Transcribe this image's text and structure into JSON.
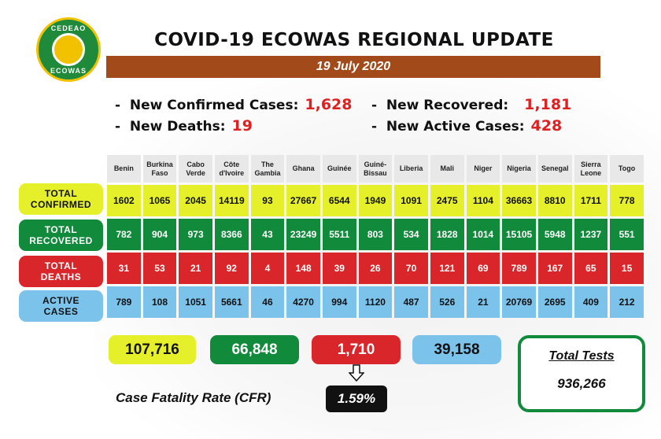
{
  "logo": {
    "top_text": "CEDEAO",
    "bottom_text": "ECOWAS"
  },
  "title": "COVID-19 ECOWAS REGIONAL UPDATE",
  "date": "19 July 2020",
  "stats": {
    "new_confirmed": {
      "label": "New Confirmed Cases:",
      "value": "1,628"
    },
    "new_deaths": {
      "label": "New Deaths:",
      "value": "19"
    },
    "new_recovered": {
      "label": "New Recovered:",
      "value": "1,181"
    },
    "new_active": {
      "label": "New Active Cases:",
      "value": "428"
    }
  },
  "bullet": "-",
  "countries": [
    "Benin",
    "Burkina Faso",
    "Cabo Verde",
    "Côte d'Ivoire",
    "The Gambia",
    "Ghana",
    "Guinée",
    "Guiné-Bissau",
    "Liberia",
    "Mali",
    "Niger",
    "Nigeria",
    "Senegal",
    "Sierra Leone",
    "Togo"
  ],
  "rows": {
    "confirmed": {
      "label": "TOTAL\nCONFIRMED",
      "values": [
        "1602",
        "1065",
        "2045",
        "14119",
        "93",
        "27667",
        "6544",
        "1949",
        "1091",
        "2475",
        "1104",
        "36663",
        "8810",
        "1711",
        "778"
      ]
    },
    "recovered": {
      "label": "TOTAL\nRECOVERED",
      "values": [
        "782",
        "904",
        "973",
        "8366",
        "43",
        "23249",
        "5511",
        "803",
        "534",
        "1828",
        "1014",
        "15105",
        "5948",
        "1237",
        "551"
      ]
    },
    "deaths": {
      "label": "TOTAL\nDEATHS",
      "values": [
        "31",
        "53",
        "21",
        "92",
        "4",
        "148",
        "39",
        "26",
        "70",
        "121",
        "69",
        "789",
        "167",
        "65",
        "15"
      ]
    },
    "active": {
      "label": "ACTIVE\nCASES",
      "values": [
        "789",
        "108",
        "1051",
        "5661",
        "46",
        "4270",
        "994",
        "1120",
        "487",
        "526",
        "21",
        "20769",
        "2695",
        "409",
        "212"
      ]
    }
  },
  "totals": {
    "confirmed": "107,716",
    "recovered": "66,848",
    "deaths": "1,710",
    "active": "39,158"
  },
  "cfr": {
    "label": "Case Fatality Rate (CFR)",
    "value": "1.59%"
  },
  "tests": {
    "label": "Total Tests",
    "value": "936,266"
  }
}
